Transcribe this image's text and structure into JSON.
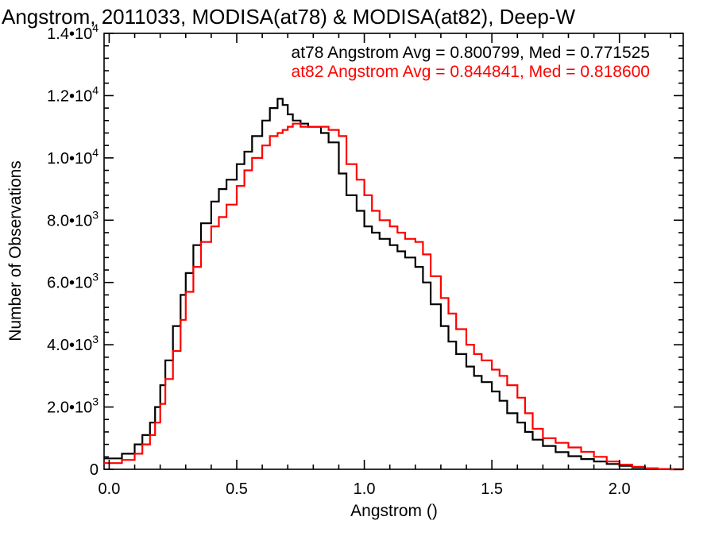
{
  "chart_data": {
    "type": "line",
    "title": "Angstrom, 2011033, MODISA(at78) & MODISA(at82), Deep-W",
    "xlabel": "Angstrom ()",
    "ylabel": "Number of Observations",
    "xlim": [
      -0.02,
      2.25
    ],
    "ylim": [
      0,
      14000
    ],
    "grid": false,
    "x_ticks": [
      {
        "value": 0.0,
        "label": "0.0"
      },
      {
        "value": 0.5,
        "label": "0.5"
      },
      {
        "value": 1.0,
        "label": "1.0"
      },
      {
        "value": 1.5,
        "label": "1.5"
      },
      {
        "value": 2.0,
        "label": "2.0"
      }
    ],
    "y_ticks": [
      {
        "value": 0,
        "mant": "0",
        "exp": ""
      },
      {
        "value": 2000,
        "mant": "2.0•10",
        "exp": "3"
      },
      {
        "value": 4000,
        "mant": "4.0•10",
        "exp": "3"
      },
      {
        "value": 6000,
        "mant": "6.0•10",
        "exp": "3"
      },
      {
        "value": 8000,
        "mant": "8.0•10",
        "exp": "3"
      },
      {
        "value": 10000,
        "mant": "1.0•10",
        "exp": "4"
      },
      {
        "value": 12000,
        "mant": "1.2•10",
        "exp": "4"
      },
      {
        "value": 14000,
        "mant": "1.4•10",
        "exp": "4"
      }
    ],
    "annotations": [
      {
        "text": "at78 Angstrom Avg = 0.800799, Med = 0.771525",
        "color": "#000000"
      },
      {
        "text": "at82 Angstrom Avg = 0.844841, Med = 0.818600",
        "color": "#ff0000"
      }
    ],
    "series": [
      {
        "color": "#000000",
        "x": [
          -0.02,
          0.05,
          0.1,
          0.13,
          0.16,
          0.18,
          0.2,
          0.22,
          0.25,
          0.28,
          0.3,
          0.33,
          0.36,
          0.4,
          0.43,
          0.46,
          0.5,
          0.53,
          0.56,
          0.6,
          0.63,
          0.66,
          0.68,
          0.7,
          0.72,
          0.75,
          0.78,
          0.8,
          0.83,
          0.86,
          0.9,
          0.93,
          0.97,
          1.0,
          1.03,
          1.06,
          1.1,
          1.13,
          1.16,
          1.2,
          1.23,
          1.26,
          1.3,
          1.33,
          1.36,
          1.4,
          1.43,
          1.46,
          1.5,
          1.53,
          1.56,
          1.6,
          1.63,
          1.66,
          1.7,
          1.75,
          1.8,
          1.85,
          1.9,
          1.95,
          2.0,
          2.05,
          2.1,
          2.15,
          2.2
        ],
        "y": [
          350,
          500,
          800,
          1100,
          1500,
          2000,
          2700,
          3500,
          4600,
          5600,
          6300,
          7200,
          7900,
          8600,
          9000,
          9300,
          9800,
          10200,
          10700,
          11200,
          11600,
          11900,
          11700,
          11400,
          11200,
          11100,
          11000,
          11000,
          10800,
          10500,
          9500,
          8800,
          8300,
          7800,
          7600,
          7400,
          7200,
          7000,
          6800,
          6500,
          6000,
          5300,
          4600,
          4100,
          3700,
          3300,
          3000,
          2800,
          2500,
          2200,
          1800,
          1500,
          1200,
          950,
          750,
          550,
          420,
          330,
          250,
          170,
          110,
          60,
          30,
          10,
          0
        ]
      },
      {
        "color": "#ff0000",
        "x": [
          -0.02,
          0.05,
          0.1,
          0.13,
          0.16,
          0.18,
          0.2,
          0.22,
          0.25,
          0.28,
          0.3,
          0.33,
          0.36,
          0.4,
          0.43,
          0.46,
          0.5,
          0.53,
          0.56,
          0.6,
          0.63,
          0.66,
          0.68,
          0.7,
          0.72,
          0.75,
          0.78,
          0.8,
          0.83,
          0.86,
          0.9,
          0.93,
          0.97,
          1.0,
          1.03,
          1.06,
          1.1,
          1.13,
          1.16,
          1.2,
          1.23,
          1.26,
          1.3,
          1.33,
          1.36,
          1.4,
          1.43,
          1.46,
          1.5,
          1.53,
          1.56,
          1.6,
          1.63,
          1.66,
          1.7,
          1.75,
          1.8,
          1.85,
          1.9,
          1.95,
          2.0,
          2.05,
          2.1,
          2.15,
          2.2
        ],
        "y": [
          200,
          300,
          500,
          800,
          1100,
          1500,
          2100,
          2900,
          3800,
          4800,
          5700,
          6500,
          7300,
          7800,
          8100,
          8500,
          9100,
          9600,
          10000,
          10400,
          10700,
          10800,
          10900,
          11000,
          11100,
          11000,
          11000,
          11000,
          11000,
          10900,
          10700,
          9800,
          9300,
          8800,
          8300,
          8000,
          7800,
          7600,
          7400,
          7300,
          6900,
          6200,
          5500,
          5000,
          4500,
          4000,
          3700,
          3500,
          3200,
          3000,
          2700,
          2300,
          1800,
          1300,
          1000,
          850,
          700,
          560,
          400,
          250,
          150,
          80,
          30,
          10,
          0
        ]
      }
    ]
  }
}
